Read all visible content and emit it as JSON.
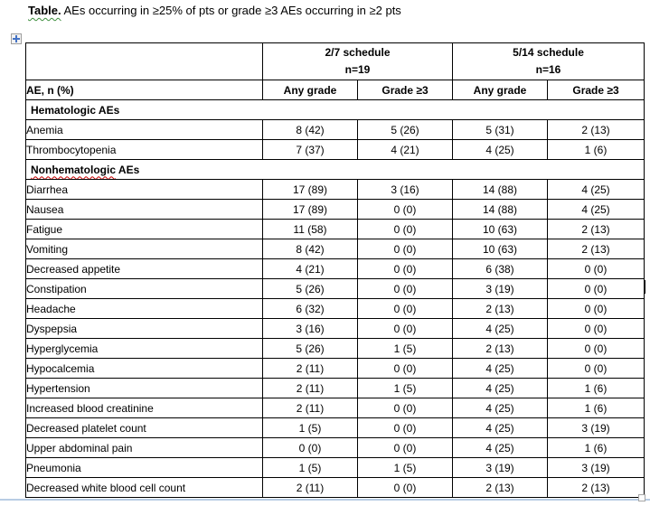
{
  "title": {
    "lead": "Table.",
    "rest": " AEs occurring in ≥25% of pts or grade ≥3 AEs occurring in ≥2 pts"
  },
  "table": {
    "corner_header": "AE, n (%)",
    "groups": [
      {
        "name": "2/7 schedule",
        "n": "n=19"
      },
      {
        "name": "5/14 schedule",
        "n": "n=16"
      }
    ],
    "subheaders": [
      "Any grade",
      "Grade ≥3",
      "Any grade",
      "Grade ≥3"
    ],
    "sections": [
      {
        "label": "Hematologic AEs",
        "rows": [
          {
            "label": "Anemia",
            "values": [
              "8 (42)",
              "5 (26)",
              "5 (31)",
              "2 (13)"
            ]
          },
          {
            "label": "Thrombocytopenia",
            "values": [
              "7 (37)",
              "4 (21)",
              "4 (25)",
              "1 (6)"
            ]
          }
        ]
      },
      {
        "label": "Nonhematologic AEs",
        "misspelled_word": "Nonhematologic",
        "label_rest": " AEs",
        "rows": [
          {
            "label": "Diarrhea",
            "values": [
              "17 (89)",
              "3 (16)",
              "14 (88)",
              "4 (25)"
            ]
          },
          {
            "label": "Nausea",
            "values": [
              "17 (89)",
              "0 (0)",
              "14 (88)",
              "4 (25)"
            ]
          },
          {
            "label": "Fatigue",
            "values": [
              "11 (58)",
              "0 (0)",
              "10 (63)",
              "2 (13)"
            ]
          },
          {
            "label": "Vomiting",
            "values": [
              "8 (42)",
              "0 (0)",
              "10 (63)",
              "2 (13)"
            ]
          },
          {
            "label": "Decreased appetite",
            "values": [
              "4 (21)",
              "0 (0)",
              "6 (38)",
              "0 (0)"
            ]
          },
          {
            "label": "Constipation",
            "values": [
              "5 (26)",
              "0 (0)",
              "3 (19)",
              "0 (0)"
            ],
            "cursor_col": 3
          },
          {
            "label": "Headache",
            "values": [
              "6 (32)",
              "0 (0)",
              "2 (13)",
              "0 (0)"
            ]
          },
          {
            "label": "Dyspepsia",
            "values": [
              "3 (16)",
              "0 (0)",
              "4 (25)",
              "0 (0)"
            ]
          },
          {
            "label": "Hyperglycemia",
            "values": [
              "5 (26)",
              "1 (5)",
              "2 (13)",
              "0 (0)"
            ]
          },
          {
            "label": "Hypocalcemia",
            "values": [
              "2 (11)",
              "0 (0)",
              "4 (25)",
              "0 (0)"
            ]
          },
          {
            "label": "Hypertension",
            "values": [
              "2 (11)",
              "1 (5)",
              "4 (25)",
              "1 (6)"
            ]
          },
          {
            "label": "Increased blood creatinine",
            "values": [
              "2 (11)",
              "0 (0)",
              "4 (25)",
              "1 (6)"
            ]
          },
          {
            "label": "Decreased platelet count",
            "values": [
              "1 (5)",
              "0 (0)",
              "4 (25)",
              "3 (19)"
            ]
          },
          {
            "label": "Upper abdominal pain",
            "values": [
              "0 (0)",
              "0 (0)",
              "4 (25)",
              "1 (6)"
            ]
          },
          {
            "label": "Pneumonia",
            "values": [
              "1 (5)",
              "1 (5)",
              "3 (19)",
              "3 (19)"
            ]
          },
          {
            "label": "Decreased white blood cell count",
            "values": [
              "2 (11)",
              "0 (0)",
              "2 (13)",
              "2 (13)"
            ]
          }
        ]
      }
    ]
  },
  "colors": {
    "table_border": "#000000",
    "spellcheck_squiggle": "#cc0000",
    "grammar_squiggle": "#3f8f3f",
    "move_handle_cross": "#4472c4",
    "page_edge_line": "#b8cce4"
  }
}
